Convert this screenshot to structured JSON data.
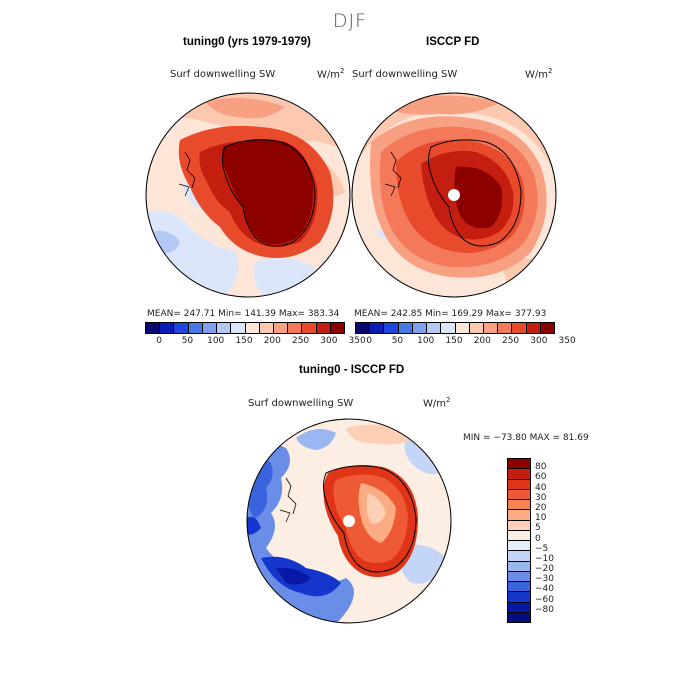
{
  "season": "DJF",
  "panels": [
    {
      "title": "tuning0 (yrs 1979-1979)",
      "variable": "Surf downwelling SW",
      "units_base": "W/m",
      "units_exp": "2",
      "stats": "MEAN= 247.71   Min= 141.39   Max= 383.34"
    },
    {
      "title": "ISCCP FD",
      "variable": "Surf downwelling SW",
      "units_base": "W/m",
      "units_exp": "2",
      "stats": "MEAN= 242.85   Min= 169.29   Max= 377.93"
    }
  ],
  "colorbar": {
    "colors": [
      "#08086e",
      "#0a1eb4",
      "#1e46dc",
      "#4678e6",
      "#7ea0ee",
      "#b4c8f4",
      "#dce6fa",
      "#fde6d8",
      "#fcc8b0",
      "#f8a082",
      "#f4785a",
      "#e84a2c",
      "#c41e10",
      "#8c0000"
    ],
    "tick_labels": [
      "0",
      "50",
      "100",
      "150",
      "200",
      "250",
      "300",
      "350"
    ]
  },
  "diff": {
    "title": "tuning0 - ISCCP FD",
    "variable": "Surf downwelling SW",
    "units_base": "W/m",
    "units_exp": "2",
    "min_max": "MIN = −73.80  MAX =  81.69",
    "colors": [
      "#8c0000",
      "#c41e10",
      "#e03418",
      "#ee5a36",
      "#f88456",
      "#fbac82",
      "#fdd0b6",
      "#fdeee4",
      "#e6eefc",
      "#c4d6f8",
      "#9cb6f2",
      "#6a8ee8",
      "#3a64de",
      "#1436cc",
      "#0818a4",
      "#060c7a"
    ],
    "tick_labels": [
      "80",
      "60",
      "40",
      "30",
      "20",
      "10",
      "5",
      "0",
      "−5",
      "−10",
      "−20",
      "−30",
      "−40",
      "−60",
      "−80"
    ]
  },
  "icons": [
    "antarctica-coastline",
    "south-pole-mask"
  ]
}
